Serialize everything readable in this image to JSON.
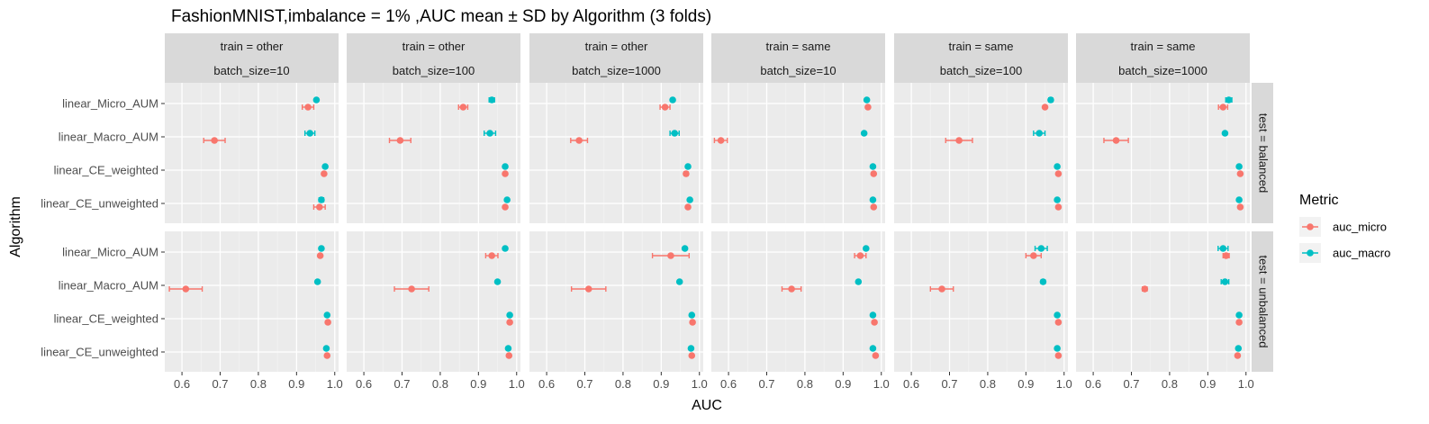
{
  "chart_data": {
    "type": "scatter",
    "title": "FashionMNIST,imbalance = 1% ,AUC mean ± SD by Algorithm (3 folds)",
    "xlabel": "AUC",
    "ylabel": "Algorithm",
    "xlim": [
      0.555,
      1.01
    ],
    "x_ticks": [
      0.6,
      0.7,
      0.8,
      0.9,
      1.0
    ],
    "x_tick_labels": [
      "0.6",
      "0.7",
      "0.8",
      "0.9",
      "1.0"
    ],
    "algorithms": [
      "linear_Micro_AUM",
      "linear_Macro_AUM",
      "linear_CE_weighted",
      "linear_CE_unweighted"
    ],
    "col_facets": [
      {
        "line1": "train = other",
        "line2": "batch_size=10"
      },
      {
        "line1": "train = other",
        "line2": "batch_size=100"
      },
      {
        "line1": "train = other",
        "line2": "batch_size=1000"
      },
      {
        "line1": "train = same",
        "line2": "batch_size=10"
      },
      {
        "line1": "train = same",
        "line2": "batch_size=100"
      },
      {
        "line1": "train = same",
        "line2": "batch_size=1000"
      }
    ],
    "row_facets": [
      "test = balanced",
      "test = unbalanced"
    ],
    "legend": {
      "title": "Metric",
      "position": "right",
      "entries": [
        {
          "name": "auc_micro",
          "color": "#F8766D"
        },
        {
          "name": "auc_macro",
          "color": "#00BFC4"
        }
      ]
    },
    "grid": true,
    "panels": [
      [
        {
          "auc_micro": [
            [
              0.93,
              0.015
            ],
            [
              0.685,
              0.028
            ],
            [
              0.972,
              0.003
            ],
            [
              0.96,
              0.015
            ]
          ],
          "auc_macro": [
            [
              0.952,
              0.004
            ],
            [
              0.935,
              0.013
            ],
            [
              0.975,
              0.003
            ],
            [
              0.965,
              0.006
            ]
          ]
        },
        {
          "auc_micro": [
            [
              0.86,
              0.012
            ],
            [
              0.695,
              0.028
            ],
            [
              0.97,
              0.003
            ],
            [
              0.97,
              0.003
            ]
          ],
          "auc_macro": [
            [
              0.935,
              0.007
            ],
            [
              0.93,
              0.015
            ],
            [
              0.97,
              0.003
            ],
            [
              0.975,
              0.003
            ]
          ]
        },
        {
          "auc_micro": [
            [
              0.91,
              0.013
            ],
            [
              0.685,
              0.022
            ],
            [
              0.965,
              0.005
            ],
            [
              0.97,
              0.003
            ]
          ],
          "auc_macro": [
            [
              0.93,
              0.004
            ],
            [
              0.935,
              0.012
            ],
            [
              0.97,
              0.003
            ],
            [
              0.975,
              0.003
            ]
          ]
        },
        {
          "auc_micro": [
            [
              0.965,
              0.003
            ],
            [
              0.58,
              0.017
            ],
            [
              0.98,
              0.002
            ],
            [
              0.98,
              0.002
            ]
          ],
          "auc_macro": [
            [
              0.962,
              0.003
            ],
            [
              0.955,
              0.003
            ],
            [
              0.978,
              0.002
            ],
            [
              0.978,
              0.002
            ]
          ]
        },
        {
          "auc_micro": [
            [
              0.95,
              0.004
            ],
            [
              0.725,
              0.035
            ],
            [
              0.985,
              0.002
            ],
            [
              0.985,
              0.002
            ]
          ],
          "auc_macro": [
            [
              0.965,
              0.005
            ],
            [
              0.935,
              0.015
            ],
            [
              0.982,
              0.002
            ],
            [
              0.982,
              0.002
            ]
          ]
        },
        {
          "auc_micro": [
            [
              0.94,
              0.012
            ],
            [
              0.66,
              0.032
            ],
            [
              0.985,
              0.002
            ],
            [
              0.985,
              0.002
            ]
          ],
          "auc_macro": [
            [
              0.955,
              0.008
            ],
            [
              0.945,
              0.003
            ],
            [
              0.982,
              0.002
            ],
            [
              0.982,
              0.002
            ]
          ]
        }
      ],
      [
        {
          "auc_micro": [
            [
              0.962,
              0.003
            ],
            [
              0.61,
              0.043
            ],
            [
              0.982,
              0.002
            ],
            [
              0.98,
              0.002
            ]
          ],
          "auc_macro": [
            [
              0.965,
              0.003
            ],
            [
              0.955,
              0.003
            ],
            [
              0.98,
              0.002
            ],
            [
              0.978,
              0.002
            ]
          ]
        },
        {
          "auc_micro": [
            [
              0.935,
              0.016
            ],
            [
              0.725,
              0.045
            ],
            [
              0.982,
              0.002
            ],
            [
              0.98,
              0.002
            ]
          ],
          "auc_macro": [
            [
              0.97,
              0.003
            ],
            [
              0.95,
              0.003
            ],
            [
              0.982,
              0.002
            ],
            [
              0.978,
              0.002
            ]
          ]
        },
        {
          "auc_micro": [
            [
              0.925,
              0.048
            ],
            [
              0.71,
              0.045
            ],
            [
              0.982,
              0.002
            ],
            [
              0.98,
              0.002
            ]
          ],
          "auc_macro": [
            [
              0.962,
              0.003
            ],
            [
              0.948,
              0.003
            ],
            [
              0.98,
              0.002
            ],
            [
              0.978,
              0.002
            ]
          ]
        },
        {
          "auc_micro": [
            [
              0.945,
              0.015
            ],
            [
              0.765,
              0.025
            ],
            [
              0.982,
              0.002
            ],
            [
              0.985,
              0.002
            ]
          ],
          "auc_macro": [
            [
              0.96,
              0.003
            ],
            [
              0.94,
              0.004
            ],
            [
              0.978,
              0.002
            ],
            [
              0.978,
              0.002
            ]
          ]
        },
        {
          "auc_micro": [
            [
              0.92,
              0.02
            ],
            [
              0.68,
              0.03
            ],
            [
              0.985,
              0.002
            ],
            [
              0.985,
              0.002
            ]
          ],
          "auc_macro": [
            [
              0.94,
              0.016
            ],
            [
              0.945,
              0.005
            ],
            [
              0.982,
              0.002
            ],
            [
              0.982,
              0.002
            ]
          ]
        },
        {
          "auc_micro": [
            [
              0.948,
              0.008
            ],
            [
              0.735,
              0.006
            ],
            [
              0.982,
              0.002
            ],
            [
              0.978,
              0.002
            ]
          ],
          "auc_macro": [
            [
              0.94,
              0.013
            ],
            [
              0.945,
              0.01
            ],
            [
              0.982,
              0.002
            ],
            [
              0.98,
              0.002
            ]
          ]
        }
      ]
    ]
  }
}
